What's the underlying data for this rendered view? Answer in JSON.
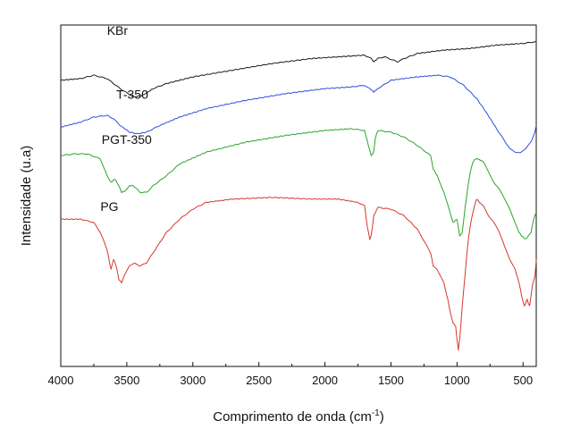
{
  "chart_data": {
    "type": "line",
    "title": "",
    "xlabel": "Comprimento de onda (cm",
    "xlabel_sup": "-1",
    "xlabel_suffix": ")",
    "ylabel": "Intensidade (u.a)",
    "xlim": [
      4000,
      400
    ],
    "x_ticks": [
      "4000",
      "3500",
      "3000",
      "2500",
      "2000",
      "1500",
      "1000",
      "500"
    ],
    "grid": false,
    "y_ticks": "none",
    "series": [
      {
        "name": "KBr",
        "color": "#1a1a1a",
        "points": [
          [
            4000,
            63.5
          ],
          [
            3850,
            64
          ],
          [
            3750,
            65
          ],
          [
            3650,
            64
          ],
          [
            3550,
            61
          ],
          [
            3450,
            58.5
          ],
          [
            3380,
            59
          ],
          [
            3300,
            61
          ],
          [
            3200,
            62.5
          ],
          [
            3000,
            64.5
          ],
          [
            2700,
            66.5
          ],
          [
            2400,
            68.5
          ],
          [
            2100,
            70
          ],
          [
            1900,
            70.5
          ],
          [
            1700,
            71
          ],
          [
            1650,
            70
          ],
          [
            1630,
            69
          ],
          [
            1600,
            70
          ],
          [
            1550,
            70.5
          ],
          [
            1450,
            69
          ],
          [
            1400,
            70
          ],
          [
            1300,
            71.5
          ],
          [
            1100,
            72.5
          ],
          [
            900,
            73
          ],
          [
            700,
            74
          ],
          [
            500,
            74.5
          ],
          [
            400,
            75
          ]
        ],
        "label_x": 3650,
        "label_y": 77
      },
      {
        "name": "T-350",
        "color": "#2f4fe0",
        "points": [
          [
            4000,
            49.5
          ],
          [
            3850,
            51
          ],
          [
            3750,
            52.5
          ],
          [
            3650,
            53
          ],
          [
            3600,
            52
          ],
          [
            3550,
            50
          ],
          [
            3480,
            48
          ],
          [
            3420,
            47.5
          ],
          [
            3350,
            48
          ],
          [
            3250,
            50
          ],
          [
            3100,
            52.5
          ],
          [
            2900,
            55
          ],
          [
            2600,
            57.5
          ],
          [
            2300,
            59.5
          ],
          [
            2000,
            61
          ],
          [
            1800,
            61.5
          ],
          [
            1700,
            62
          ],
          [
            1660,
            61
          ],
          [
            1630,
            60
          ],
          [
            1600,
            61
          ],
          [
            1500,
            63.5
          ],
          [
            1300,
            64.5
          ],
          [
            1150,
            65
          ],
          [
            1050,
            64.5
          ],
          [
            950,
            62
          ],
          [
            850,
            58
          ],
          [
            780,
            54
          ],
          [
            700,
            49
          ],
          [
            650,
            46
          ],
          [
            600,
            43
          ],
          [
            560,
            42
          ],
          [
            520,
            42
          ],
          [
            480,
            43
          ],
          [
            440,
            45
          ],
          [
            410,
            48
          ],
          [
            400,
            50
          ]
        ],
        "label_x": 3580,
        "label_y": 58
      },
      {
        "name": "PGT-350",
        "color": "#2aa52a",
        "points": [
          [
            4000,
            41
          ],
          [
            3900,
            41.5
          ],
          [
            3800,
            41.5
          ],
          [
            3700,
            40
          ],
          [
            3650,
            35
          ],
          [
            3620,
            33
          ],
          [
            3590,
            34
          ],
          [
            3560,
            32
          ],
          [
            3540,
            30
          ],
          [
            3510,
            30.5
          ],
          [
            3480,
            32
          ],
          [
            3450,
            32
          ],
          [
            3400,
            30
          ],
          [
            3350,
            30
          ],
          [
            3300,
            32
          ],
          [
            3200,
            35
          ],
          [
            3100,
            38.5
          ],
          [
            2900,
            42
          ],
          [
            2600,
            45
          ],
          [
            2300,
            47
          ],
          [
            2000,
            48.5
          ],
          [
            1800,
            49
          ],
          [
            1700,
            48.5
          ],
          [
            1670,
            44
          ],
          [
            1650,
            41
          ],
          [
            1630,
            42
          ],
          [
            1620,
            46
          ],
          [
            1600,
            48.5
          ],
          [
            1500,
            48
          ],
          [
            1400,
            46.5
          ],
          [
            1300,
            44
          ],
          [
            1200,
            41
          ],
          [
            1180,
            37
          ],
          [
            1150,
            35
          ],
          [
            1100,
            30
          ],
          [
            1060,
            25
          ],
          [
            1030,
            21
          ],
          [
            1000,
            22
          ],
          [
            980,
            17
          ],
          [
            960,
            18
          ],
          [
            940,
            25
          ],
          [
            920,
            31
          ],
          [
            900,
            36
          ],
          [
            880,
            39
          ],
          [
            860,
            40
          ],
          [
            840,
            40
          ],
          [
            800,
            39
          ],
          [
            760,
            36
          ],
          [
            720,
            33
          ],
          [
            680,
            31
          ],
          [
            640,
            28
          ],
          [
            600,
            25
          ],
          [
            560,
            21
          ],
          [
            530,
            18
          ],
          [
            510,
            17
          ],
          [
            480,
            16
          ],
          [
            460,
            17
          ],
          [
            440,
            18
          ],
          [
            420,
            22
          ],
          [
            400,
            24
          ]
        ],
        "label_x": 3690,
        "label_y": 44.5
      },
      {
        "name": "PG",
        "color": "#d6392b",
        "points": [
          [
            4000,
            22
          ],
          [
            3850,
            22
          ],
          [
            3750,
            21
          ],
          [
            3700,
            18
          ],
          [
            3650,
            13
          ],
          [
            3620,
            7
          ],
          [
            3600,
            10
          ],
          [
            3580,
            8
          ],
          [
            3560,
            4
          ],
          [
            3540,
            3
          ],
          [
            3520,
            5
          ],
          [
            3480,
            8
          ],
          [
            3440,
            9
          ],
          [
            3400,
            8
          ],
          [
            3350,
            9
          ],
          [
            3300,
            12
          ],
          [
            3200,
            18
          ],
          [
            3100,
            22
          ],
          [
            3000,
            25
          ],
          [
            2900,
            27
          ],
          [
            2700,
            28
          ],
          [
            2400,
            28.5
          ],
          [
            2100,
            28
          ],
          [
            1900,
            28
          ],
          [
            1750,
            27
          ],
          [
            1700,
            26
          ],
          [
            1680,
            20
          ],
          [
            1660,
            16
          ],
          [
            1650,
            17
          ],
          [
            1630,
            23
          ],
          [
            1600,
            25.5
          ],
          [
            1500,
            25
          ],
          [
            1400,
            23
          ],
          [
            1300,
            19
          ],
          [
            1200,
            12
          ],
          [
            1180,
            8
          ],
          [
            1150,
            7
          ],
          [
            1100,
            3
          ],
          [
            1070,
            -2
          ],
          [
            1050,
            -6
          ],
          [
            1030,
            -9
          ],
          [
            1010,
            -10
          ],
          [
            1000,
            -14
          ],
          [
            990,
            -17
          ],
          [
            980,
            -14
          ],
          [
            960,
            -4
          ],
          [
            940,
            5
          ],
          [
            920,
            14
          ],
          [
            900,
            20
          ],
          [
            880,
            24
          ],
          [
            860,
            27
          ],
          [
            850,
            28
          ],
          [
            830,
            27
          ],
          [
            800,
            26
          ],
          [
            760,
            23
          ],
          [
            720,
            21
          ],
          [
            680,
            18
          ],
          [
            640,
            14
          ],
          [
            600,
            10
          ],
          [
            560,
            7
          ],
          [
            530,
            3
          ],
          [
            510,
            -1
          ],
          [
            490,
            -4
          ],
          [
            470,
            -2
          ],
          [
            450,
            -4
          ],
          [
            430,
            2
          ],
          [
            410,
            5
          ],
          [
            400,
            10
          ]
        ],
        "label_x": 3700,
        "label_y": 24.5
      }
    ]
  }
}
